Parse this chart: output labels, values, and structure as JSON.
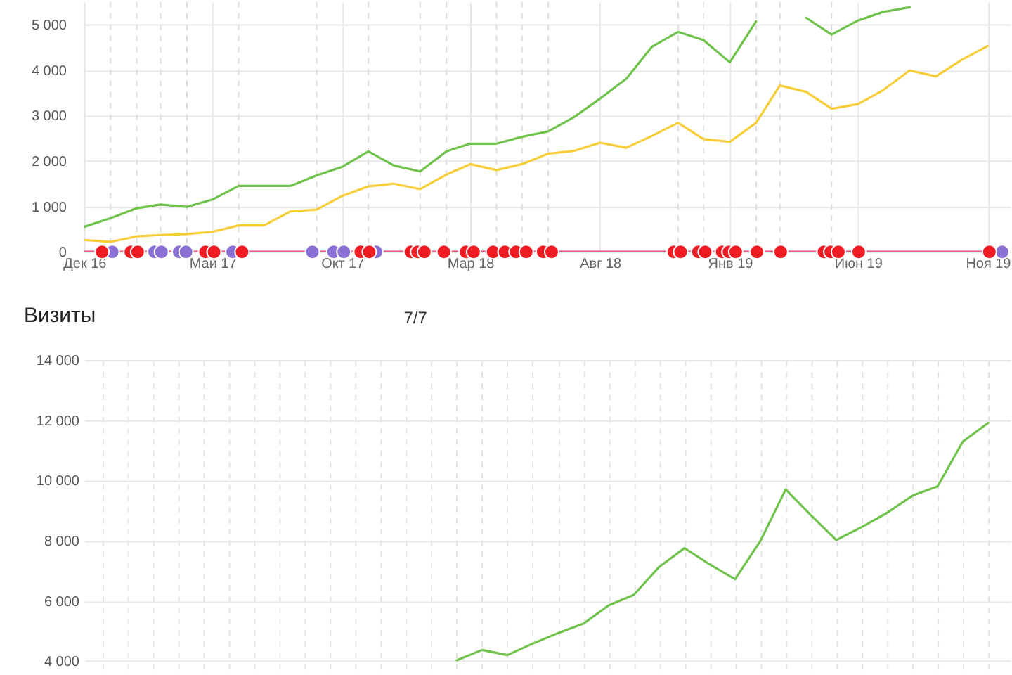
{
  "chart_data": [
    {
      "type": "line",
      "x": [
        "2016-12",
        "2017-01",
        "2017-02",
        "2017-03",
        "2017-04",
        "2017-05",
        "2017-06",
        "2017-07",
        "2017-08",
        "2017-09",
        "2017-10",
        "2017-11",
        "2017-12",
        "2018-01",
        "2018-02",
        "2018-03",
        "2018-04",
        "2018-05",
        "2018-06",
        "2018-07",
        "2018-08",
        "2018-09",
        "2018-10",
        "2018-11",
        "2018-12",
        "2019-01",
        "2019-02",
        "2019-03",
        "2019-04",
        "2019-05",
        "2019-06",
        "2019-07",
        "2019-08",
        "2019-09",
        "2019-10",
        "2019-11"
      ],
      "xlim": [
        "2016-12-01",
        "2019-11-28"
      ],
      "xticks": [
        {
          "value": "2016-12",
          "label": "Дек 16"
        },
        {
          "value": "2017-05",
          "label": "Май 17"
        },
        {
          "value": "2017-10",
          "label": "Окт 17"
        },
        {
          "value": "2018-03",
          "label": "Мар 18"
        },
        {
          "value": "2018-08",
          "label": "Авг 18"
        },
        {
          "value": "2019-01",
          "label": "Янв 19"
        },
        {
          "value": "2019-06",
          "label": "Июн 19"
        },
        {
          "value": "2019-11",
          "label": "Ноя 19"
        }
      ],
      "ylim": [
        0,
        5500
      ],
      "yticks": [
        0,
        {
          "value": 1000,
          "label": "1 000"
        },
        {
          "value": 2000,
          "label": "2 000"
        },
        {
          "value": 3000,
          "label": "3 000"
        },
        {
          "value": 4000,
          "label": "4 000"
        },
        {
          "value": 5000,
          "label": "5 000"
        }
      ],
      "grid": true,
      "ref_lines": [
        {
          "axis": "x",
          "value": "2017-01",
          "color": "#dddddd",
          "line_style": "dashed"
        },
        {
          "axis": "x",
          "value": "2017-02",
          "color": "#dddddd",
          "line_style": "dashed"
        },
        {
          "axis": "x",
          "value": "2017-03",
          "color": "#dddddd",
          "line_style": "dashed"
        },
        {
          "axis": "x",
          "value": "2017-04",
          "color": "#dddddd",
          "line_style": "dashed"
        },
        {
          "axis": "x",
          "value": "2017-06",
          "color": "#dddddd",
          "line_style": "dashed"
        },
        {
          "axis": "x",
          "value": "2017-09",
          "color": "#dddddd",
          "line_style": "dashed"
        },
        {
          "axis": "x",
          "value": "2017-11",
          "color": "#dddddd",
          "line_style": "dashed"
        },
        {
          "axis": "x",
          "value": "2018-01",
          "color": "#dddddd",
          "line_style": "dashed"
        },
        {
          "axis": "x",
          "value": "2018-02",
          "color": "#dddddd",
          "line_style": "dashed"
        },
        {
          "axis": "x",
          "value": "2018-04",
          "color": "#dddddd",
          "line_style": "dashed"
        },
        {
          "axis": "x",
          "value": "2018-05",
          "color": "#dddddd",
          "line_style": "dashed"
        },
        {
          "axis": "x",
          "value": "2018-06",
          "color": "#dddddd",
          "line_style": "dashed"
        },
        {
          "axis": "x",
          "value": "2018-11",
          "color": "#dddddd",
          "line_style": "dashed"
        },
        {
          "axis": "x",
          "value": "2018-12",
          "color": "#dddddd",
          "line_style": "dashed"
        },
        {
          "axis": "x",
          "value": "2019-02",
          "color": "#dddddd",
          "line_style": "dashed"
        },
        {
          "axis": "x",
          "value": "2019-03",
          "color": "#dddddd",
          "line_style": "dashed"
        },
        {
          "axis": "x",
          "value": "2019-05",
          "color": "#dddddd",
          "line_style": "dashed"
        }
      ],
      "series": [
        {
          "color": "#6fc24b",
          "values": [
            550,
            740,
            960,
            1040,
            990,
            1150,
            1450,
            1450,
            1450,
            1680,
            1870,
            2210,
            1900,
            1770,
            2210,
            2380,
            2380,
            2530,
            2650,
            2960,
            3370,
            3810,
            4510,
            4840,
            4660,
            4170,
            5070,
            null,
            5150,
            4780,
            5090,
            5280,
            5380,
            null,
            null,
            null
          ]
        },
        {
          "color": "#f8cd3a",
          "values": [
            260,
            220,
            340,
            370,
            390,
            440,
            580,
            580,
            890,
            930,
            1230,
            1440,
            1500,
            1380,
            1700,
            1930,
            1800,
            1930,
            2160,
            2220,
            2400,
            2290,
            2550,
            2840,
            2480,
            2420,
            2840,
            3660,
            3520,
            3150,
            3250,
            3560,
            3990,
            3860,
            4220,
            4530
          ]
        },
        {
          "color": "#ee4d7a",
          "values": [
            0,
            0,
            0,
            0,
            0,
            0,
            0,
            0,
            0,
            0,
            0,
            0,
            0,
            0,
            0,
            0,
            0,
            0,
            0,
            0,
            0,
            0,
            0,
            0,
            0,
            0,
            0,
            0,
            0,
            0,
            0,
            0,
            0,
            0,
            0,
            0
          ]
        },
        {
          "type": "scatter",
          "marker": "circle",
          "color": "#8a70d4",
          "x": [
            "2017-01-03",
            "2017-02-22",
            "2017-03-02",
            "2017-03-23",
            "2017-03-31",
            "2017-05-25",
            "2017-08-27",
            "2017-09-21",
            "2017-10-03",
            "2017-11-10",
            "2019-11-18"
          ],
          "values": [
            0,
            0,
            0,
            0,
            0,
            0,
            0,
            0,
            0,
            0,
            0
          ]
        },
        {
          "type": "scatter",
          "marker": "circle",
          "color": "#f01c24",
          "x": [
            "2016-12-22",
            "2017-01-25",
            "2017-02-02",
            "2017-04-23",
            "2017-05-03",
            "2017-06-05",
            "2017-10-23",
            "2017-11-02",
            "2017-12-21",
            "2017-12-29",
            "2018-01-06",
            "2018-01-29",
            "2018-02-24",
            "2018-03-05",
            "2018-03-28",
            "2018-04-11",
            "2018-04-24",
            "2018-05-06",
            "2018-05-26",
            "2018-06-05",
            "2018-10-27",
            "2018-11-04",
            "2018-11-25",
            "2018-12-03",
            "2018-12-23",
            "2018-12-31",
            "2019-01-08",
            "2019-02-02",
            "2019-03-02",
            "2019-04-22",
            "2019-04-30",
            "2019-05-09",
            "2019-06-02",
            "2019-11-03"
          ],
          "values": [
            0,
            0,
            0,
            0,
            0,
            0,
            0,
            0,
            0,
            0,
            0,
            0,
            0,
            0,
            0,
            0,
            0,
            0,
            0,
            0,
            0,
            0,
            0,
            0,
            0,
            0,
            0,
            0,
            0,
            0,
            0,
            0,
            0,
            0
          ]
        }
      ]
    },
    {
      "type": "line",
      "title": "Визиты",
      "annotations": [
        "7/7"
      ],
      "categories": [
        null,
        null,
        null,
        null,
        null,
        null,
        null,
        null,
        null,
        null,
        null,
        null,
        null,
        null,
        null,
        null,
        null,
        null,
        null,
        null,
        null,
        null,
        null,
        null,
        null,
        null,
        null,
        null,
        null,
        null,
        null,
        null,
        null,
        null,
        null,
        null
      ],
      "ylim": [
        3600,
        14000
      ],
      "yticks": [
        {
          "value": 4000,
          "label": "4 000"
        },
        {
          "value": 6000,
          "label": "6 000"
        },
        {
          "value": 8000,
          "label": "8 000"
        },
        {
          "value": 10000,
          "label": "10 000"
        },
        {
          "value": 12000,
          "label": "12 000"
        },
        {
          "value": 14000,
          "label": "14 000"
        }
      ],
      "tick_labels": "y",
      "grid": true,
      "series": [
        {
          "color": "#6fc24b",
          "values": [
            null,
            null,
            null,
            null,
            null,
            null,
            null,
            null,
            null,
            null,
            null,
            null,
            null,
            null,
            4030,
            4370,
            4200,
            4580,
            4930,
            5240,
            5850,
            6200,
            7130,
            7750,
            7210,
            6720,
            7990,
            9700,
            8840,
            8020,
            8450,
            8920,
            9490,
            9800,
            11290,
            11910
          ]
        }
      ]
    }
  ]
}
